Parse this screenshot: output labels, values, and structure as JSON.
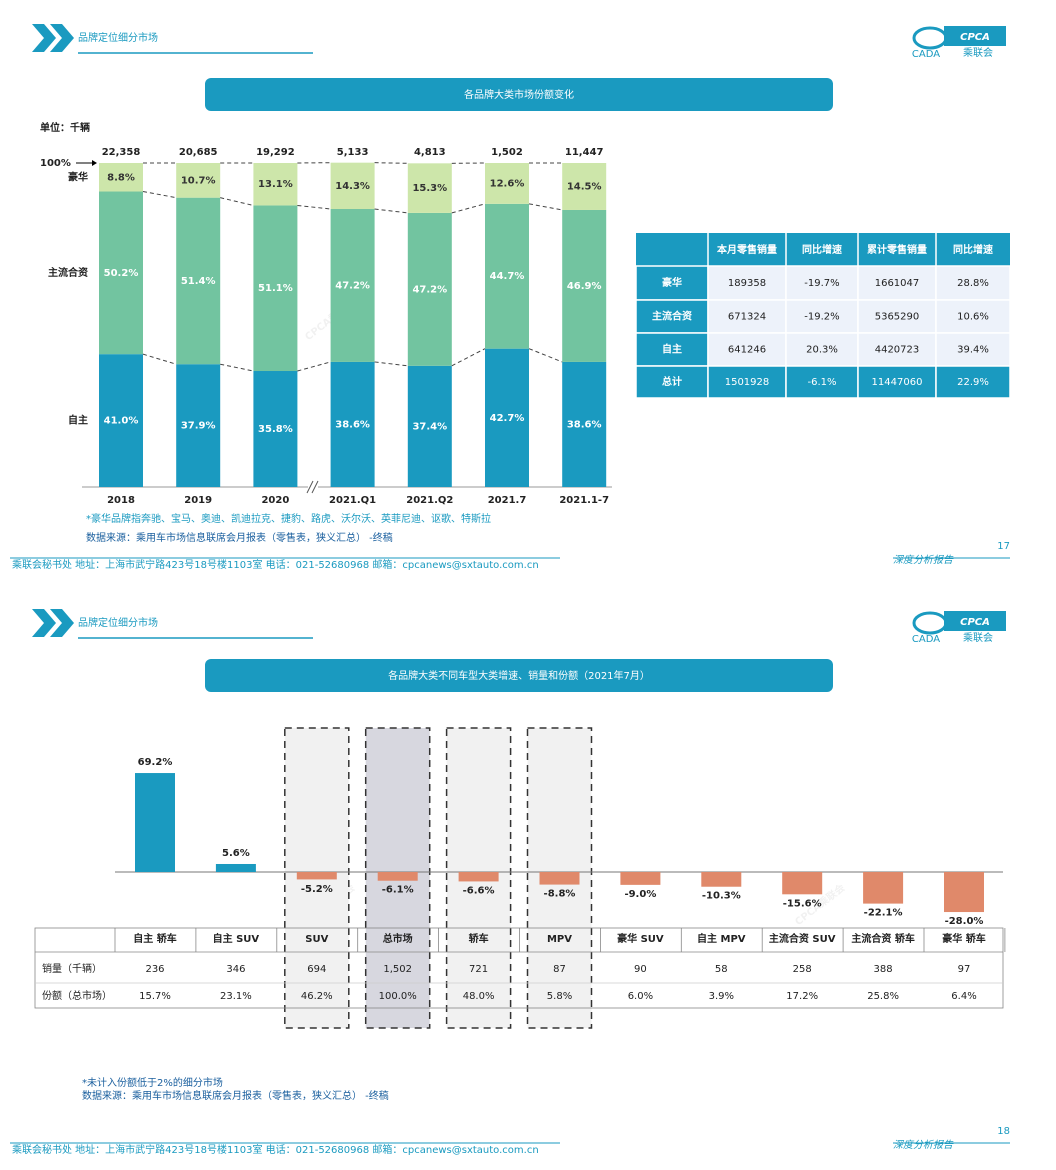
{
  "slides": [
    {
      "header": "品牌定位细分市场",
      "logo": {
        "mark": "CPCA",
        "name": "乘联会",
        "seal": "CADA"
      },
      "title": "各品牌大类市场份额变化",
      "table": {
        "columns": [
          "本月零售销量",
          "同比增速",
          "累计零售销量",
          "同比增速"
        ],
        "rows": [
          [
            "豪华",
            "189358",
            "-19.7%",
            "1661047",
            "28.8%"
          ],
          [
            "主流合资",
            "671324",
            "-19.2%",
            "5365290",
            "10.6%"
          ],
          [
            "自主",
            "641246",
            "20.3%",
            "4420723",
            "39.4%"
          ],
          [
            "总计",
            "1501928",
            "-6.1%",
            "11447060",
            "22.9%"
          ]
        ]
      },
      "notes": [
        "*豪华品牌指奔驰、宝马、奥迪、凯迪拉克、捷豹、路虎、沃尔沃、英菲尼迪、讴歌、特斯拉",
        "数据来源：乘用车市场信息联席会月报表（零售表，狭义汇总）  -终稿"
      ],
      "watermark": "CPCA乘联会",
      "footer": "乘联会秘书处   地址：上海市武宁路423号18号楼1103室   电话：021-52680968   邮箱：cpcanews@sxtauto.com.cn",
      "report": "深度分析报告",
      "page": "17"
    },
    {
      "header": "品牌定位细分市场",
      "logo": {
        "mark": "CPCA",
        "name": "乘联会",
        "seal": "CADA"
      },
      "title": "各品牌大类不同车型大类增速、销量和份额（2021年7月）",
      "table": {
        "row_labels": [
          "销量（千辆）",
          "份额（总市场）"
        ],
        "rows": [
          [
            "236",
            "346",
            "694",
            "1,502",
            "721",
            "87",
            "90",
            "58",
            "258",
            "388",
            "97"
          ],
          [
            "15.7%",
            "23.1%",
            "46.2%",
            "100.0%",
            "48.0%",
            "5.8%",
            "6.0%",
            "3.9%",
            "17.2%",
            "25.8%",
            "6.4%"
          ]
        ]
      },
      "notes": [
        "*未计入份额低于2%的细分市场",
        "数据来源：乘用车市场信息联席会月报表（零售表，狭义汇总）  -终稿"
      ],
      "watermark": "CPCA乘联会",
      "footer": "乘联会秘书处   地址：上海市武宁路423号18号楼1103室   电话：021-52680968   邮箱：cpcanews@sxtauto.com.cn",
      "report": "深度分析报告",
      "page": "18"
    }
  ],
  "chart_data": [
    {
      "type": "stacked_bar",
      "unit": "单位：千辆",
      "categories": [
        "2018",
        "2019",
        "2020",
        "2021.Q1",
        "2021.Q2",
        "2021.7",
        "2021.1-7"
      ],
      "ylim": [
        0,
        100
      ],
      "yticks": [
        {
          "value": 100,
          "label": "100%"
        }
      ],
      "totals": {
        "values": [
          22358,
          20685,
          19292,
          5133,
          4813,
          1502,
          11447
        ],
        "value_labels": [
          "22,358",
          "20,685",
          "19,292",
          "5,133",
          "4,813",
          "1,502",
          "11,447"
        ]
      },
      "series": [
        {
          "name": "自主",
          "color": "#1a9ac0",
          "values": [
            41.0,
            37.9,
            35.8,
            38.6,
            37.4,
            42.7,
            38.6
          ],
          "value_labels": [
            "41.0%",
            "37.9%",
            "35.8%",
            "38.6%",
            "37.4%",
            "42.7%",
            "38.6%"
          ]
        },
        {
          "name": "主流合资",
          "color": "#72c4a0",
          "values": [
            50.2,
            51.4,
            51.1,
            47.2,
            47.2,
            44.7,
            46.9
          ],
          "value_labels": [
            "50.2%",
            "51.4%",
            "51.1%",
            "47.2%",
            "47.2%",
            "44.7%",
            "46.9%"
          ]
        },
        {
          "name": "豪华",
          "color": "#cde6aa",
          "values": [
            8.8,
            10.7,
            13.1,
            14.3,
            15.3,
            12.6,
            14.5
          ],
          "value_labels": [
            "8.8%",
            "10.7%",
            "13.1%",
            "14.3%",
            "15.3%",
            "12.6%",
            "14.5%"
          ]
        }
      ]
    },
    {
      "type": "bar",
      "categories": [
        "自主 轿车",
        "自主 SUV",
        "SUV",
        "总市场",
        "轿车",
        "MPV",
        "豪华 SUV",
        "自主 MPV",
        "主流合资 SUV",
        "主流合资 轿车",
        "豪华 轿车"
      ],
      "values": [
        69.2,
        5.6,
        -5.2,
        -6.1,
        -6.6,
        -8.8,
        -9.0,
        -10.3,
        -15.6,
        -22.1,
        -28.0
      ],
      "value_labels": [
        "69.2%",
        "5.6%",
        "-5.2%",
        "-6.1%",
        "-6.6%",
        "-8.8%",
        "-9.0%",
        "-10.3%",
        "-15.6%",
        "-22.1%",
        "-28.0%"
      ],
      "colors": {
        "positive": "#1a9ac0",
        "negative": "#e0896a"
      }
    }
  ]
}
